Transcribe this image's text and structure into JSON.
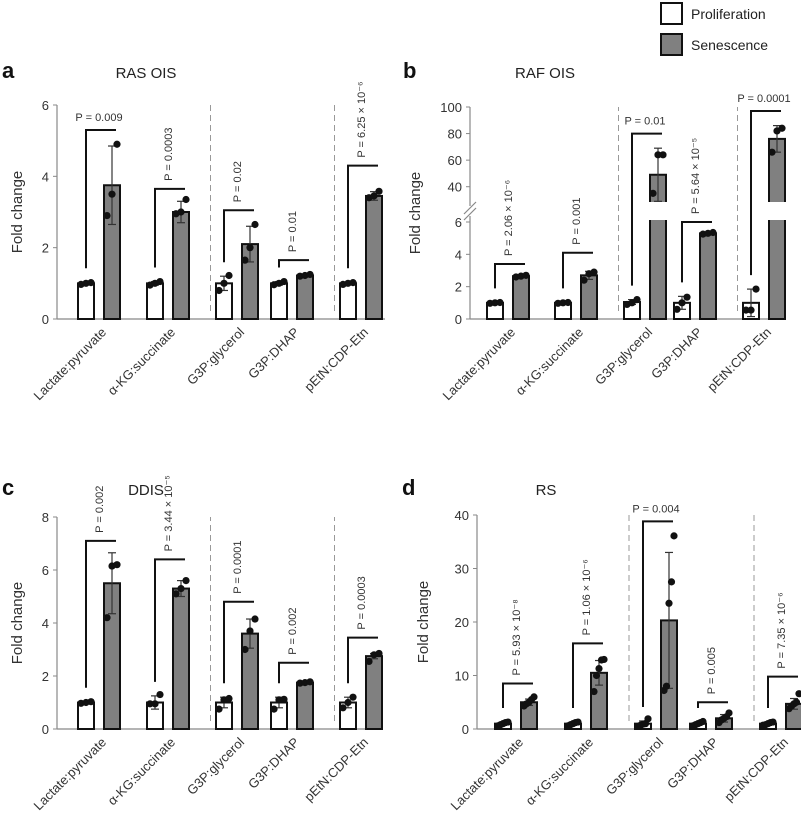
{
  "legend": {
    "items": [
      {
        "label": "Proliferation",
        "color": "#ffffff"
      },
      {
        "label": "Senescence",
        "color": "#808080"
      }
    ]
  },
  "colors": {
    "proliferation": "#ffffff",
    "senescence": "#808080",
    "edge": "#111111",
    "axis": "#888888",
    "divider": "#999999"
  },
  "chart_data": [
    {
      "type": "bar",
      "panel": "a",
      "title": "RAS OIS",
      "ylabel": "Fold change",
      "xlabel": "",
      "ylim": [
        0,
        6
      ],
      "yticks": [
        0,
        2,
        4,
        6
      ],
      "categories": [
        "Lactate:pyruvate",
        "α-KG:succinate",
        "G3P:glycerol",
        "G3P:DHAP",
        "pEtN:CDP-Etn"
      ],
      "dividers_after": [
        1,
        3
      ],
      "series": [
        {
          "name": "Proliferation",
          "values": [
            1.0,
            1.0,
            1.0,
            1.0,
            1.0
          ],
          "err": [
            0.03,
            0.05,
            0.2,
            0.05,
            0.03
          ],
          "points": [
            [
              0.97,
              1.0,
              1.02
            ],
            [
              0.95,
              1.0,
              1.05
            ],
            [
              0.8,
              1.0,
              1.22
            ],
            [
              0.96,
              1.0,
              1.05
            ],
            [
              0.97,
              1.0,
              1.02
            ]
          ]
        },
        {
          "name": "Senescence",
          "values": [
            3.75,
            3.0,
            2.1,
            1.22,
            3.45
          ],
          "err": [
            1.1,
            0.3,
            0.5,
            0.03,
            0.12
          ],
          "points": [
            [
              2.9,
              3.5,
              4.9
            ],
            [
              2.95,
              3.0,
              3.35
            ],
            [
              1.65,
              2.0,
              2.65
            ],
            [
              1.2,
              1.22,
              1.25
            ],
            [
              3.4,
              3.45,
              3.58
            ]
          ]
        }
      ],
      "pvalues": [
        {
          "text": "P = 0.009",
          "rotated": false,
          "bracket": 5.3
        },
        {
          "text": "P = 0.0003",
          "rotated": true,
          "bracket": 3.65
        },
        {
          "text": "P = 0.02",
          "rotated": true,
          "bracket": 3.05
        },
        {
          "text": "P = 0.01",
          "rotated": true,
          "bracket": 1.65
        },
        {
          "text": "P = 6.25 × 10⁻⁶",
          "rotated": true,
          "bracket": 4.3
        }
      ]
    },
    {
      "type": "bar",
      "panel": "b",
      "title": "RAF OIS",
      "ylabel": "Fold change",
      "xlabel": "",
      "axis_break": {
        "lower_range": [
          0,
          6
        ],
        "upper_range": [
          30,
          100
        ]
      },
      "yticks_lower": [
        0,
        2,
        4,
        6
      ],
      "yticks_upper": [
        40,
        60,
        80,
        100
      ],
      "categories": [
        "Lactate:pyruvate",
        "α-KG:succinate",
        "G3P:glycerol",
        "G3P:DHAP",
        "pEtN:CDP-Etn"
      ],
      "dividers_after": [
        1,
        3
      ],
      "series": [
        {
          "name": "Proliferation",
          "values": [
            1.0,
            1.0,
            1.05,
            1.0,
            1.0
          ],
          "err": [
            0.03,
            0.03,
            0.15,
            0.4,
            0.85
          ],
          "points": [
            [
              0.97,
              1.0,
              1.02
            ],
            [
              0.97,
              1.0,
              1.02
            ],
            [
              0.9,
              1.0,
              1.2
            ],
            [
              0.6,
              1.0,
              1.35
            ],
            [
              0.55,
              0.55,
              1.85
            ]
          ]
        },
        {
          "name": "Senescence",
          "values": [
            2.65,
            2.7,
            49,
            5.3,
            76
          ],
          "err": [
            0.05,
            0.25,
            20,
            0.05,
            10
          ],
          "points": [
            [
              2.6,
              2.65,
              2.7
            ],
            [
              2.4,
              2.8,
              2.9
            ],
            [
              35,
              64,
              64
            ],
            [
              5.25,
              5.3,
              5.35
            ],
            [
              66,
              82,
              84
            ]
          ]
        }
      ],
      "pvalues": [
        {
          "text": "P = 2.06 × 10⁻⁶",
          "rotated": true,
          "bracket": 3.4
        },
        {
          "text": "P = 0.001",
          "rotated": true,
          "bracket": 4.1
        },
        {
          "text": "P = 0.01",
          "rotated": false,
          "bracket": 80
        },
        {
          "text": "P = 5.64 × 10⁻⁵",
          "rotated": true,
          "bracket": 6.0
        },
        {
          "text": "P = 0.0001",
          "rotated": false,
          "bracket": 97
        }
      ]
    },
    {
      "type": "bar",
      "panel": "c",
      "title": "DDIS",
      "ylabel": "Fold change",
      "xlabel": "",
      "ylim": [
        0,
        8
      ],
      "yticks": [
        0,
        2,
        4,
        6,
        8
      ],
      "categories": [
        "Lactate:pyruvate",
        "α-KG:succinate",
        "G3P:glycerol",
        "G3P:DHAP",
        "pEtN:CDP-Etn"
      ],
      "dividers_after": [
        1,
        3
      ],
      "series": [
        {
          "name": "Proliferation",
          "values": [
            1.0,
            1.0,
            1.0,
            1.0,
            1.0
          ],
          "err": [
            0.03,
            0.25,
            0.2,
            0.2,
            0.2
          ],
          "points": [
            [
              0.97,
              1.0,
              1.03
            ],
            [
              0.95,
              0.95,
              1.3
            ],
            [
              0.75,
              1.1,
              1.15
            ],
            [
              0.75,
              1.1,
              1.12
            ],
            [
              0.8,
              1.0,
              1.2
            ]
          ]
        },
        {
          "name": "Senescence",
          "values": [
            5.5,
            5.3,
            3.6,
            1.75,
            2.75
          ],
          "err": [
            1.15,
            0.3,
            0.55,
            0.03,
            0.1
          ],
          "points": [
            [
              4.2,
              6.15,
              6.2
            ],
            [
              5.1,
              5.3,
              5.6
            ],
            [
              3.0,
              3.7,
              4.15
            ],
            [
              1.73,
              1.75,
              1.78
            ],
            [
              2.55,
              2.8,
              2.85
            ]
          ]
        }
      ],
      "pvalues": [
        {
          "text": "P = 0.002",
          "rotated": true,
          "bracket": 7.1
        },
        {
          "text": "P = 3.44 × 10⁻⁵",
          "rotated": true,
          "bracket": 6.4
        },
        {
          "text": "P = 0.0001",
          "rotated": true,
          "bracket": 4.8
        },
        {
          "text": "P = 0.002",
          "rotated": true,
          "bracket": 2.5
        },
        {
          "text": "P = 0.0003",
          "rotated": true,
          "bracket": 3.45
        }
      ]
    },
    {
      "type": "bar",
      "panel": "d",
      "title": "RS",
      "ylabel": "Fold change",
      "xlabel": "",
      "ylim": [
        0,
        40
      ],
      "yticks": [
        0,
        10,
        20,
        30,
        40
      ],
      "categories": [
        "Lactate:pyruvate",
        "α-KG:succinate",
        "G3P:glycerol",
        "G3P:DHAP",
        "pEtN:CDP-Etn"
      ],
      "dividers_after": [
        1,
        3
      ],
      "series": [
        {
          "name": "Proliferation",
          "values": [
            1.0,
            1.0,
            1.0,
            1.0,
            1.0
          ],
          "err": [
            0.3,
            0.3,
            0.5,
            0.3,
            0.3
          ],
          "points": [
            [
              0.6,
              0.8,
              1.0,
              1.2,
              1.3
            ],
            [
              0.6,
              0.8,
              1.0,
              1.2,
              1.3
            ],
            [
              0.5,
              0.7,
              0.9,
              1.0,
              1.9
            ],
            [
              0.6,
              0.8,
              1.0,
              1.2,
              1.4
            ],
            [
              0.7,
              0.8,
              1.0,
              1.2,
              1.3
            ]
          ]
        },
        {
          "name": "Senescence",
          "values": [
            5.0,
            10.5,
            20.3,
            2.0,
            4.7
          ],
          "err": [
            0.6,
            2.3,
            12.7,
            0.7,
            1.0
          ],
          "points": [
            [
              4.3,
              4.7,
              5.0,
              5.5,
              6.0
            ],
            [
              7.0,
              10.0,
              11.3,
              12.9,
              13.0
            ],
            [
              7.2,
              8.0,
              23.5,
              27.5,
              36.1
            ],
            [
              1.2,
              1.7,
              2.0,
              2.3,
              3.0
            ],
            [
              3.8,
              4.3,
              4.7,
              5.0,
              6.6
            ]
          ]
        }
      ],
      "pvalues": [
        {
          "text": "P = 5.93 × 10⁻⁸",
          "rotated": true,
          "bracket": 8.5
        },
        {
          "text": "P = 1.06 × 10⁻⁶",
          "rotated": true,
          "bracket": 16
        },
        {
          "text": "P = 0.004",
          "rotated": false,
          "bracket": 38.8
        },
        {
          "text": "P = 0.005",
          "rotated": true,
          "bracket": 5.0
        },
        {
          "text": "P = 7.35 × 10⁻⁶",
          "rotated": true,
          "bracket": 9.8
        }
      ]
    }
  ]
}
